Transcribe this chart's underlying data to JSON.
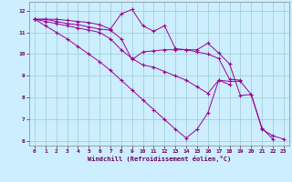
{
  "xlabel": "Windchill (Refroidissement éolien,°C)",
  "bg_color": "#cceeff",
  "line_color": "#990099",
  "grid_color": "#99cccc",
  "xlim": [
    -0.5,
    23.5
  ],
  "ylim": [
    5.8,
    12.4
  ],
  "yticks": [
    6,
    7,
    8,
    9,
    10,
    11,
    12
  ],
  "xticks": [
    0,
    1,
    2,
    3,
    4,
    5,
    6,
    7,
    8,
    9,
    10,
    11,
    12,
    13,
    14,
    15,
    16,
    17,
    18,
    19,
    20,
    21,
    22,
    23
  ],
  "series": [
    [
      11.6,
      11.6,
      11.6,
      11.55,
      11.5,
      11.45,
      11.35,
      11.15,
      11.85,
      12.05,
      11.3,
      11.05,
      11.3,
      10.25,
      10.2,
      10.2,
      10.5,
      10.05,
      9.55,
      8.1,
      8.15,
      6.6,
      6.1,
      null
    ],
    [
      11.6,
      11.6,
      11.5,
      11.4,
      11.35,
      11.25,
      11.15,
      11.1,
      10.7,
      9.75,
      10.1,
      10.15,
      10.2,
      10.2,
      10.2,
      10.1,
      10.0,
      9.8,
      8.85,
      8.8,
      null,
      null,
      null,
      null
    ],
    [
      11.6,
      11.5,
      11.4,
      11.3,
      11.2,
      11.1,
      11.0,
      10.7,
      10.2,
      9.8,
      9.5,
      9.4,
      9.2,
      9.0,
      8.8,
      8.5,
      8.2,
      8.8,
      8.6,
      null,
      null,
      null,
      null,
      null
    ],
    [
      11.6,
      11.3,
      11.0,
      10.7,
      10.35,
      10.0,
      9.65,
      9.25,
      8.8,
      8.35,
      7.9,
      7.45,
      7.0,
      6.55,
      6.15,
      6.55,
      7.3,
      8.8,
      8.75,
      8.75,
      8.15,
      6.55,
      6.25,
      6.1
    ]
  ]
}
